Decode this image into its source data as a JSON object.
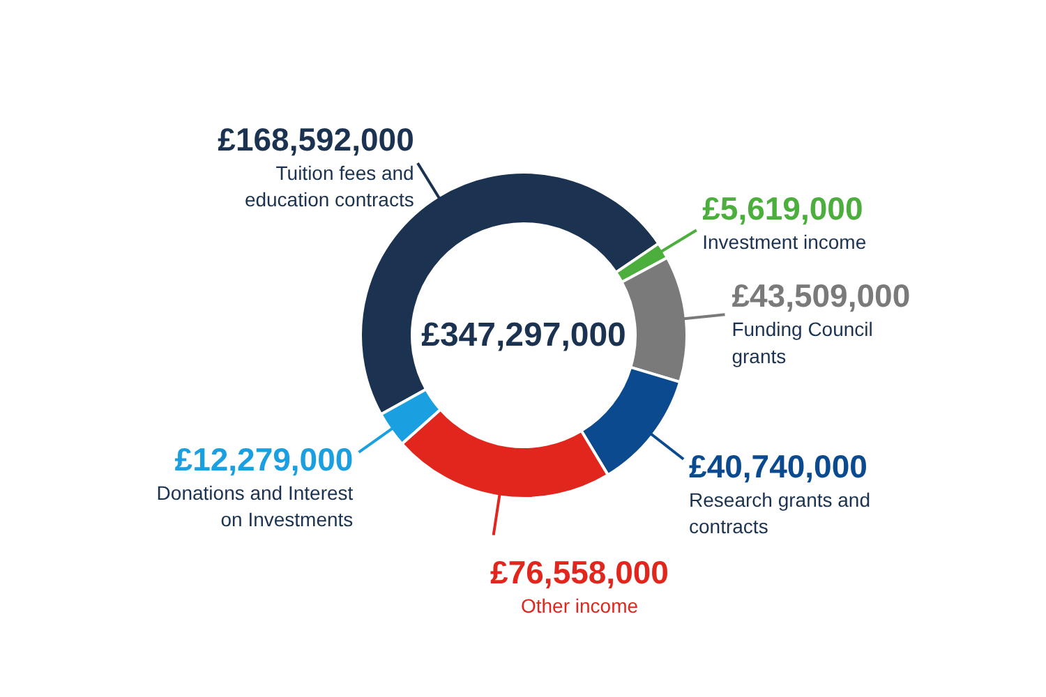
{
  "chart_data": {
    "type": "donut",
    "categories": [
      "Tuition fees and\neducation contracts",
      "Investment income",
      "Funding Council\ngrants",
      "Research grants and\ncontracts",
      "Other income",
      "Donations and Interest\non Investments"
    ],
    "values": [
      168592000,
      5619000,
      43509000,
      40740000,
      76558000,
      12279000
    ],
    "value_labels": [
      "£168,592,000",
      "£5,619,000",
      "£43,509,000",
      "£40,740,000",
      "£76,558,000",
      "£12,279,000"
    ],
    "colors": [
      "#1b3350",
      "#4cae3c",
      "#7a7a7a",
      "#0b4a8f",
      "#e0261d",
      "#1a9fe0"
    ],
    "annotations": [
      "£347,297,000"
    ]
  }
}
